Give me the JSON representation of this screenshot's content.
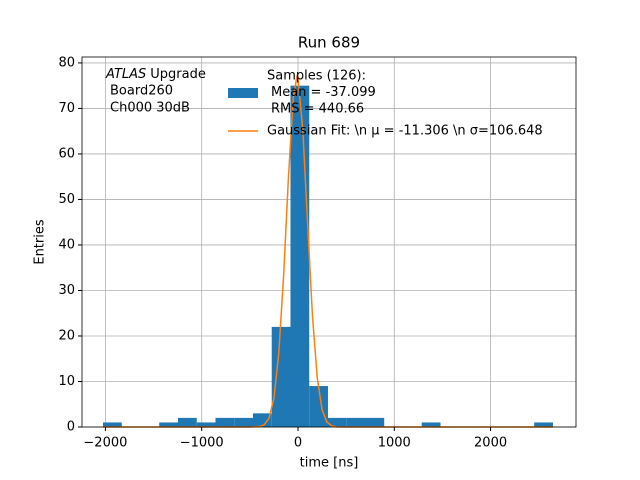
{
  "chart_data": {
    "type": "histogram",
    "title": "Run 689",
    "x_label": "time [ns]",
    "y_label": "Entries",
    "xlim": [
      -2243,
      2887
    ],
    "ylim": [
      0,
      81.3
    ],
    "xticks": [
      {
        "value": -2000,
        "label": "−2000"
      },
      {
        "value": -1000,
        "label": "−1000"
      },
      0,
      1000,
      2000
    ],
    "yticks": [
      0,
      10,
      20,
      30,
      40,
      50,
      60,
      70,
      80
    ],
    "grid": true,
    "annotation_head": {
      "italic": "ATLAS",
      "text": "Upgrade"
    },
    "annotation_lines": [
      "Board260",
      "Ch000 30dB"
    ],
    "series": [
      {
        "type": "histogram",
        "name": [
          "Samples (126):",
          "Mean = -37.099",
          "RMS = 440.66"
        ],
        "color": "#1f77b4",
        "bins": [
          -2025,
          -1830.3,
          -1635.6,
          -1440.9,
          -1246.2,
          -1051.5,
          -856.8,
          -662.1,
          -467.4,
          -272.7,
          -78,
          116.7,
          311.4,
          506.1,
          700.8,
          895.5,
          1090.2,
          1284.9,
          1479.6,
          1674.3,
          1869,
          2063.7,
          2258.4,
          2453.1,
          2647.8
        ],
        "values": [
          1,
          0,
          0,
          1,
          2,
          1,
          2,
          2,
          3,
          22,
          75,
          9,
          2,
          2,
          2,
          0,
          0,
          1,
          0,
          0,
          0,
          0,
          0,
          1
        ]
      },
      {
        "type": "line",
        "name": "Gaussian Fit: \\n μ = -11.306 \\n σ=106.648",
        "color": "#ff7f0e",
        "x": [
          -2025,
          -600,
          -500,
          -400,
          -350,
          -300,
          -250,
          -200,
          -150,
          -100,
          -50,
          -11.3,
          0,
          50,
          100,
          150,
          200,
          250,
          300,
          350,
          400,
          500,
          2648
        ],
        "values": [
          0,
          0,
          0,
          0.1,
          0.49,
          1.97,
          6.3,
          16.1,
          33.0,
          54.5,
          72.1,
          77,
          76.6,
          65.3,
          44.6,
          24.5,
          10.8,
          3.8,
          1.1,
          0.25,
          0.04,
          0,
          0
        ]
      }
    ]
  }
}
